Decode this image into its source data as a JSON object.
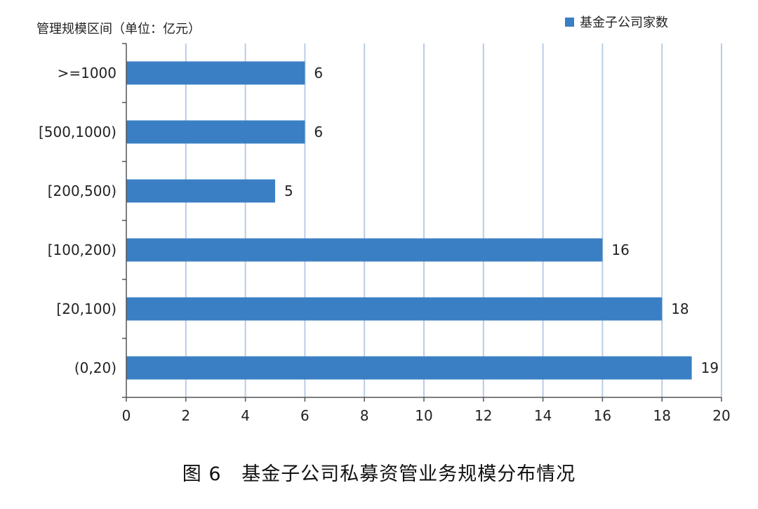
{
  "chart_data": {
    "type": "bar",
    "orientation": "horizontal",
    "ylabel": "管理规模区间（单位：亿元）",
    "categories": [
      ">=1000",
      "[500,1000)",
      "[200,500)",
      "[100,200)",
      "[20,100)",
      "(0,20)"
    ],
    "series": [
      {
        "name": "基金子公司家数",
        "values": [
          6,
          6,
          5,
          16,
          18,
          19
        ],
        "color": "#3a7fc4"
      }
    ],
    "xlim": [
      0,
      20
    ],
    "xticks": [
      0,
      2,
      4,
      6,
      8,
      10,
      12,
      14,
      16,
      18,
      20
    ],
    "grid": "vertical",
    "legend": "top-right",
    "data_labels": true
  },
  "caption": {
    "figure_no": "图 6",
    "title": "基金子公司私募资管业务规模分布情况"
  }
}
